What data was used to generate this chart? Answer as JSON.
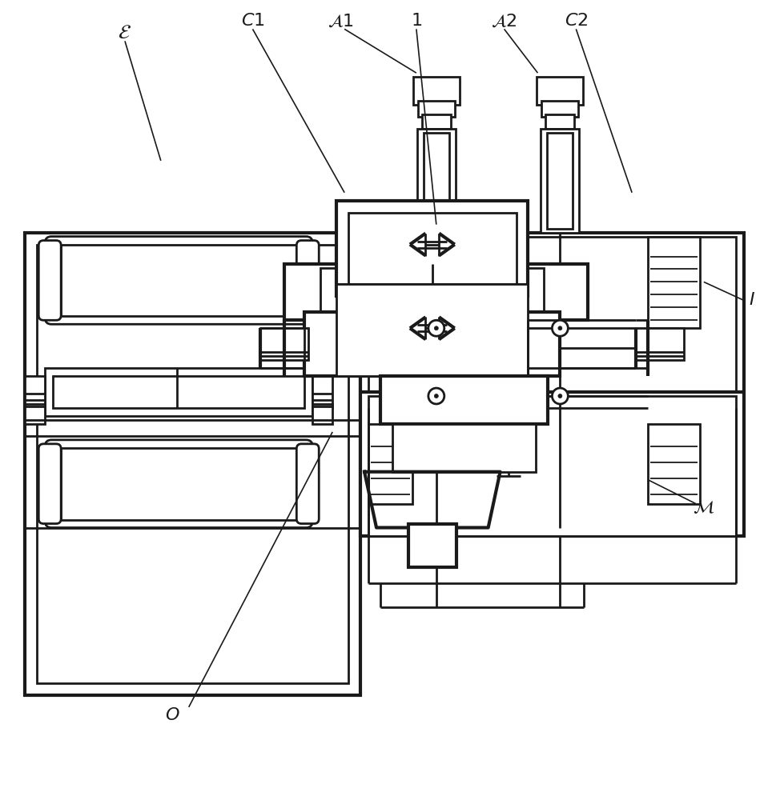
{
  "bg_color": "#ffffff",
  "lc": "#1a1a1a",
  "lw": 2.0,
  "tlw": 1.3,
  "thk": 3.0,
  "figsize": [
    9.64,
    10.0
  ],
  "dpi": 100
}
